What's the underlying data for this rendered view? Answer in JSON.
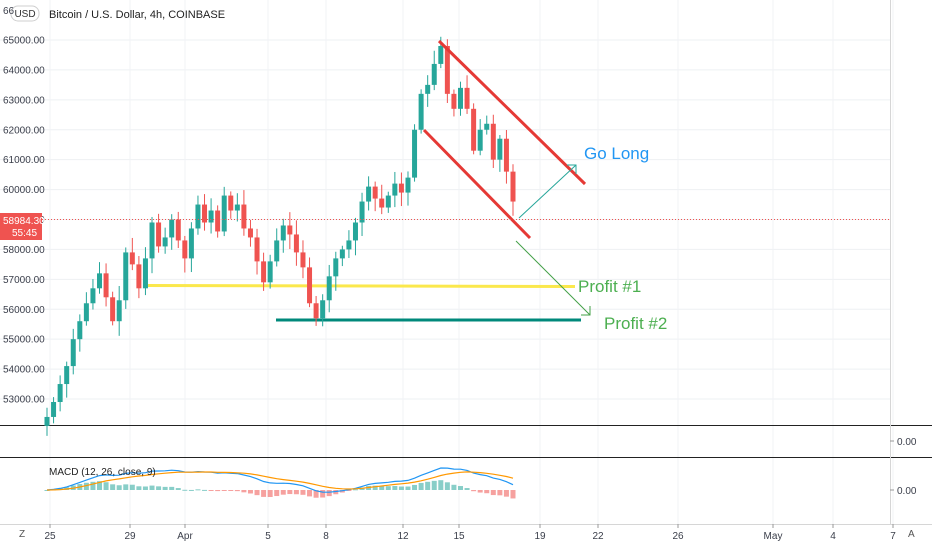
{
  "header": {
    "currency_badge": "USD",
    "symbol_title": "Bitcoin / U.S. Dollar, 4h, COINBASE"
  },
  "price_badge": {
    "price": "58984.30",
    "countdown": "55:45"
  },
  "annotations": {
    "go_long": "Go Long",
    "profit1": "Profit #1",
    "profit2": "Profit #2"
  },
  "macd": {
    "title": "MACD (12, 26, close, 9)",
    "right_value": "0.00"
  },
  "middle_pane": {
    "right_value": "0.00"
  },
  "bottom_bar": {
    "left_button": "Z",
    "right_button": "A"
  },
  "colors": {
    "up": "#26a69a",
    "down": "#ef5350",
    "channel": "#e53935",
    "support1": "#fbe84c",
    "support2": "#00897b",
    "long_arrow": "#26a69a",
    "short_arrow": "#43a047",
    "go_long_text": "#2196f3",
    "profit_text": "#4caf50",
    "macd_line": "#2196f3",
    "signal_line": "#ff9800",
    "price_badge": "#ef5350"
  },
  "chart_data": {
    "type": "candlestick",
    "price_axis": {
      "ticks": [
        "53000.00",
        "54000.00",
        "55000.00",
        "56000.00",
        "57000.00",
        "58000.00",
        "59000.00",
        "60000.00",
        "61000.00",
        "62000.00",
        "63000.00",
        "64000.00",
        "65000.00"
      ],
      "top_partial_label": "66",
      "range": [
        52100,
        66100
      ]
    },
    "time_axis": {
      "labels": [
        "25",
        "29",
        "Apr",
        "5",
        "8",
        "12",
        "15",
        "19",
        "22",
        "26",
        "May",
        "4",
        "7"
      ]
    },
    "close_series": [
      52400,
      52900,
      53500,
      54100,
      55000,
      55600,
      56200,
      56700,
      57200,
      56400,
      55600,
      56300,
      57900,
      57500,
      56700,
      57700,
      58900,
      58100,
      58400,
      59000,
      58300,
      57700,
      58700,
      59500,
      58900,
      59300,
      58600,
      59800,
      59300,
      59500,
      58700,
      58400,
      57600,
      56900,
      57600,
      58300,
      58800,
      58500,
      57900,
      57400,
      56200,
      55700,
      56300,
      57100,
      57700,
      58000,
      58300,
      58900,
      59600,
      60100,
      59700,
      59400,
      59800,
      60200,
      59900,
      60400,
      62000,
      63200,
      63500,
      64200,
      64800,
      63200,
      62700,
      63400,
      62700,
      61300,
      62000,
      62200,
      61000,
      61700,
      60600,
      59600
    ],
    "levels": {
      "profit1": 56850,
      "profit2": 55700
    }
  }
}
